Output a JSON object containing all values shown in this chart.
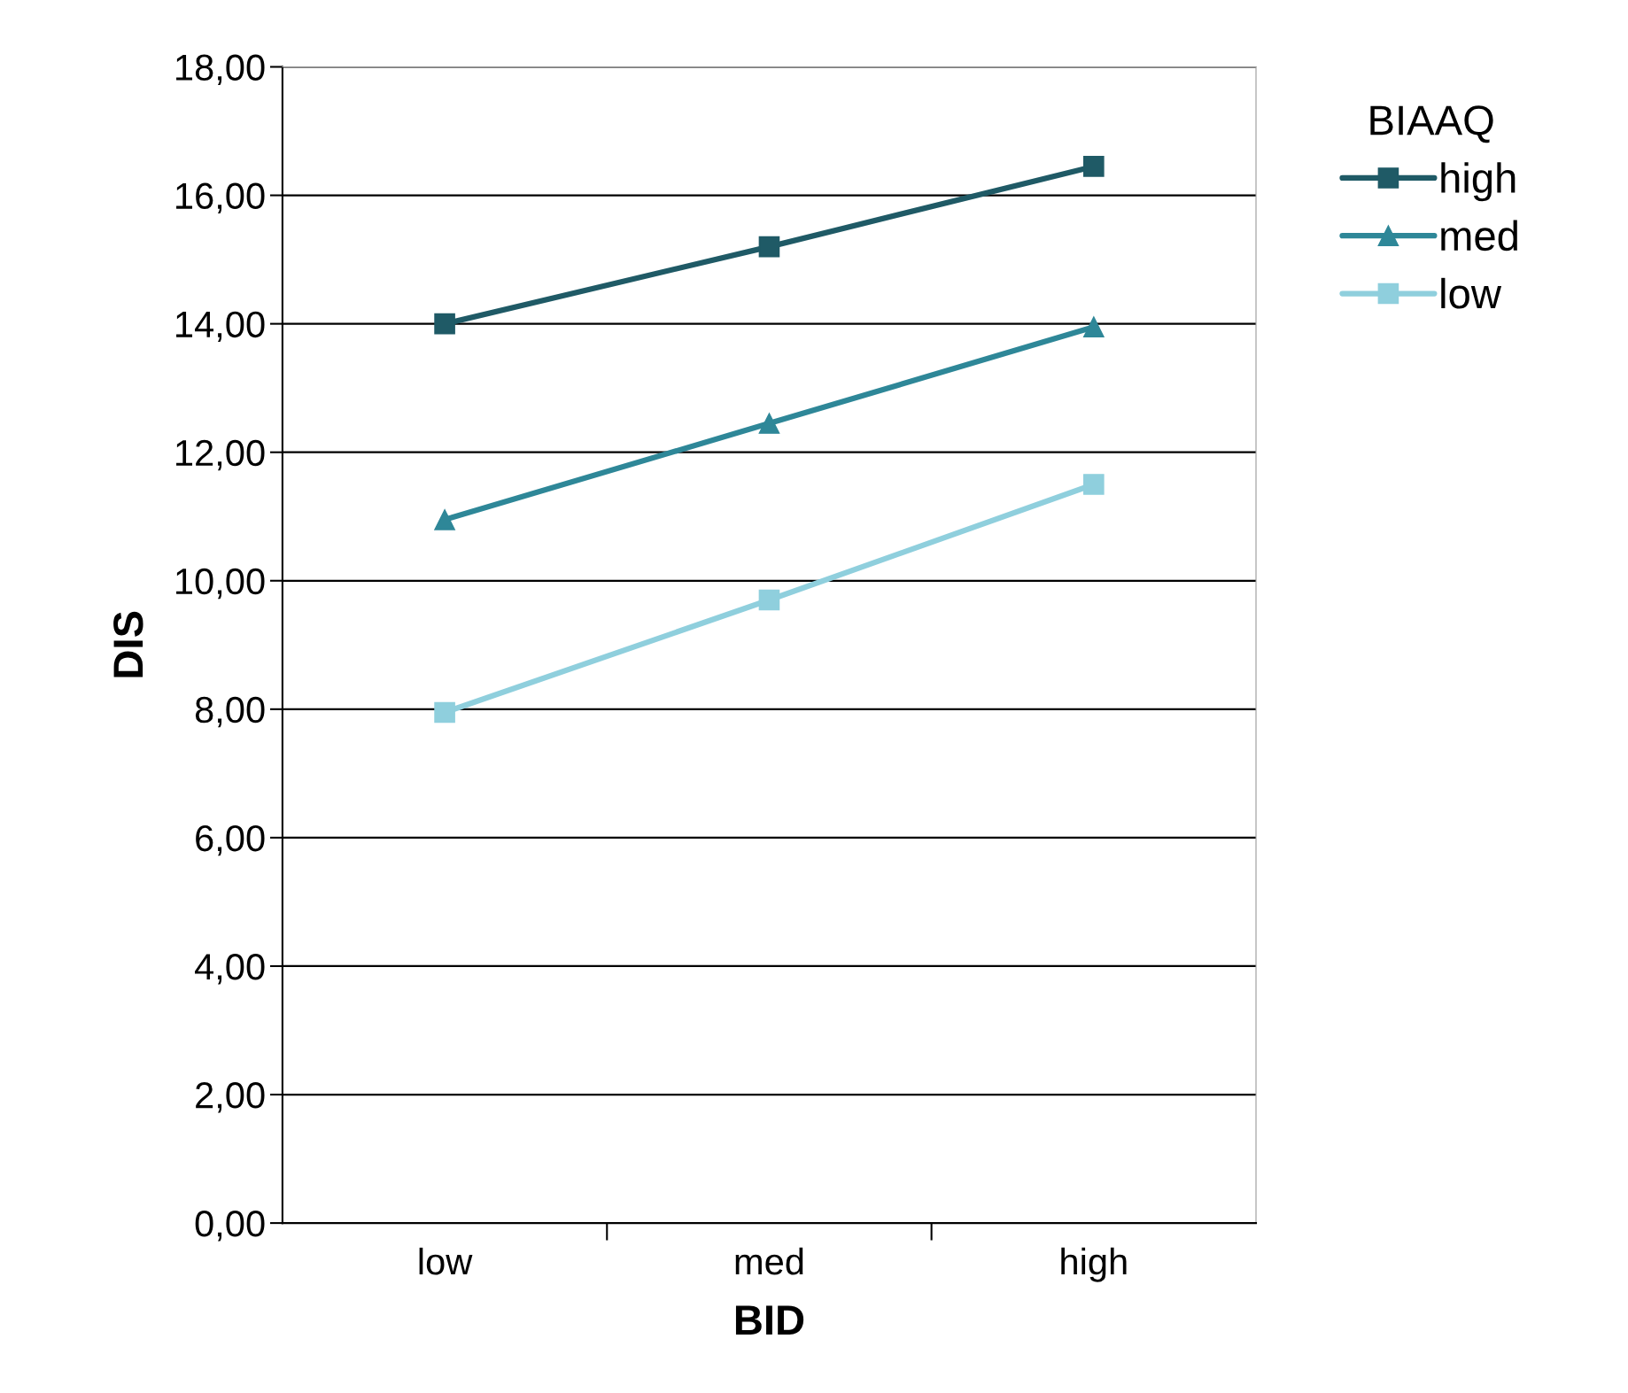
{
  "chart_data": {
    "type": "line",
    "xlabel": "BID",
    "ylabel": "DIS",
    "legend_title": "BIAAQ",
    "categories": [
      "low",
      "med",
      "high"
    ],
    "series": [
      {
        "name": "high",
        "color": "#1f5a66",
        "marker": "square",
        "values": [
          14.0,
          15.2,
          16.45
        ]
      },
      {
        "name": "med",
        "color": "#2e8798",
        "marker": "triangle",
        "values": [
          10.95,
          12.45,
          13.95
        ]
      },
      {
        "name": "low",
        "color": "#8fcfdd",
        "marker": "square",
        "values": [
          7.95,
          9.7,
          11.5
        ]
      }
    ],
    "ylim": [
      0,
      18
    ],
    "yticks": [
      {
        "value": 0,
        "label": "0,00"
      },
      {
        "value": 2,
        "label": "2,00"
      },
      {
        "value": 4,
        "label": "4,00"
      },
      {
        "value": 6,
        "label": "6,00"
      },
      {
        "value": 8,
        "label": "8,00"
      },
      {
        "value": 10,
        "label": "10,00"
      },
      {
        "value": 12,
        "label": "12,00"
      },
      {
        "value": 14,
        "label": "14,00"
      },
      {
        "value": 16,
        "label": "16,00"
      },
      {
        "value": 18,
        "label": "18,00"
      }
    ],
    "grid": "y",
    "legend": "top right",
    "line_style": "solid"
  }
}
